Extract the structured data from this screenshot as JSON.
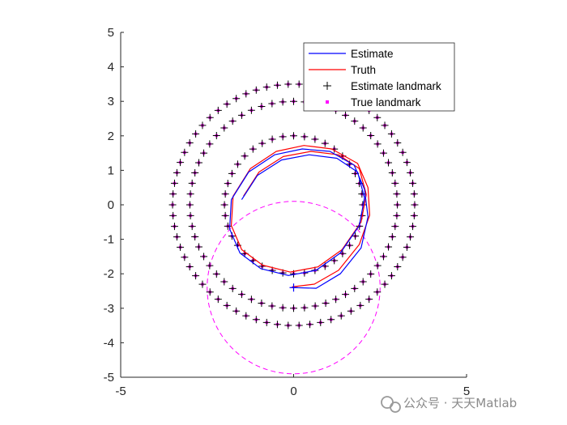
{
  "chart_data": {
    "type": "line",
    "title": "",
    "xlabel": "",
    "ylabel": "",
    "xlim": [
      -5,
      5
    ],
    "ylim": [
      -5,
      5
    ],
    "xticks": [
      -5,
      0,
      5
    ],
    "yticks": [
      -5,
      -4,
      -3,
      -2,
      -1,
      0,
      1,
      2,
      3,
      4,
      5
    ],
    "xtick_labels": [
      "-5",
      "0",
      "5"
    ],
    "ytick_labels": [
      "-5",
      "-4",
      "-3",
      "-2",
      "-1",
      "0",
      "1",
      "2",
      "3",
      "4",
      "5"
    ],
    "grid": false,
    "legend_position": "top-right",
    "series": [
      {
        "name": "Estimate",
        "style": "solid line",
        "color": "#0000ff"
      },
      {
        "name": "Truth",
        "style": "solid line",
        "color": "#ff0000"
      },
      {
        "name": "Estimate landmark",
        "style": "plus markers",
        "color": "#000000"
      },
      {
        "name": "True landmark",
        "style": "point markers",
        "color": "#ff00ff"
      }
    ],
    "truth_path": {
      "description": "spiral-like circular trajectory around origin",
      "points": [
        [
          -0.05,
          -2.38
        ],
        [
          0.6,
          -2.3
        ],
        [
          1.3,
          -1.9
        ],
        [
          1.9,
          -1.15
        ],
        [
          2.2,
          -0.3
        ],
        [
          2.15,
          0.5
        ],
        [
          1.85,
          1.2
        ],
        [
          1.1,
          1.62
        ],
        [
          0.3,
          1.72
        ],
        [
          -0.5,
          1.55
        ],
        [
          -1.25,
          1.05
        ],
        [
          -1.75,
          0.25
        ],
        [
          -1.8,
          -0.6
        ],
        [
          -1.5,
          -1.3
        ],
        [
          -0.9,
          -1.75
        ],
        [
          -0.1,
          -1.95
        ],
        [
          0.7,
          -1.8
        ],
        [
          1.4,
          -1.3
        ],
        [
          1.95,
          -0.5
        ],
        [
          2.1,
          0.3
        ],
        [
          1.9,
          1.05
        ],
        [
          1.3,
          1.45
        ],
        [
          0.5,
          1.55
        ],
        [
          -0.3,
          1.4
        ],
        [
          -1.0,
          0.95
        ],
        [
          -1.45,
          0.25
        ]
      ]
    },
    "estimate_path": {
      "description": "estimated trajectory close to truth with small drift",
      "points": [
        [
          -0.05,
          -2.4
        ],
        [
          0.65,
          -2.42
        ],
        [
          1.35,
          -2.0
        ],
        [
          1.95,
          -1.25
        ],
        [
          2.15,
          -0.35
        ],
        [
          2.05,
          0.45
        ],
        [
          1.75,
          1.15
        ],
        [
          1.05,
          1.55
        ],
        [
          0.25,
          1.62
        ],
        [
          -0.55,
          1.45
        ],
        [
          -1.3,
          0.95
        ],
        [
          -1.8,
          0.15
        ],
        [
          -1.85,
          -0.7
        ],
        [
          -1.55,
          -1.4
        ],
        [
          -0.95,
          -1.85
        ],
        [
          -0.15,
          -2.05
        ],
        [
          0.65,
          -1.9
        ],
        [
          1.35,
          -1.4
        ],
        [
          1.9,
          -0.6
        ],
        [
          2.05,
          0.2
        ],
        [
          1.85,
          0.95
        ],
        [
          1.25,
          1.35
        ],
        [
          0.45,
          1.45
        ],
        [
          -0.35,
          1.3
        ],
        [
          -1.05,
          0.85
        ],
        [
          -1.5,
          0.15
        ]
      ]
    },
    "landmark_rings": [
      {
        "cx": 0,
        "cy": 0,
        "r": 2.0,
        "count": 40
      },
      {
        "cx": 0,
        "cy": 0,
        "r": 3.0,
        "count": 60
      },
      {
        "cx": 0,
        "cy": 0,
        "r": 3.5,
        "count": 70
      }
    ],
    "current_pose": {
      "x": 0.0,
      "y": -2.4
    },
    "uncertainty_circle": {
      "cx": 0,
      "cy": -2.4,
      "r": 2.5,
      "color": "#ff00ff",
      "style": "dashed"
    }
  },
  "watermark": {
    "text": "公众号 · 天天Matlab"
  }
}
